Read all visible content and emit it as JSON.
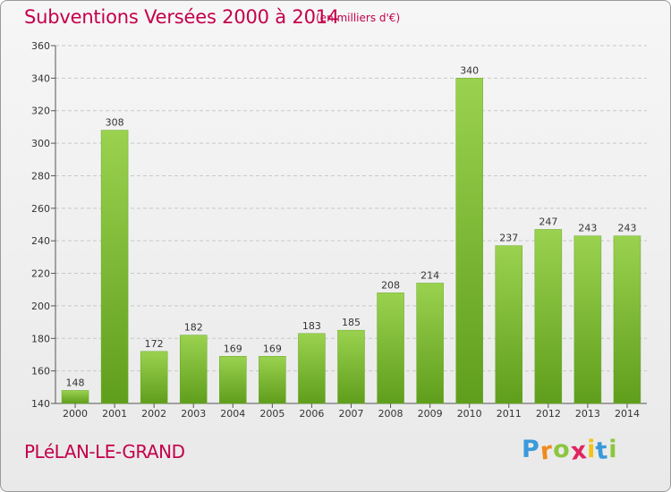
{
  "chart_data": {
    "type": "bar",
    "title": "Subventions Versées 2000 à 2014",
    "subtitle": "(en milliers d'€)",
    "categories": [
      "2000",
      "2001",
      "2002",
      "2003",
      "2004",
      "2005",
      "2006",
      "2007",
      "2008",
      "2009",
      "2010",
      "2011",
      "2012",
      "2013",
      "2014"
    ],
    "values": [
      148,
      308,
      172,
      182,
      169,
      169,
      183,
      185,
      208,
      214,
      340,
      237,
      247,
      243,
      243
    ],
    "ylim": [
      140,
      360
    ],
    "yticks": [
      140,
      160,
      180,
      200,
      220,
      240,
      260,
      280,
      300,
      320,
      340,
      360
    ],
    "xlabel": "",
    "ylabel": "",
    "grid": "horizontal dashed",
    "bar_color": "#7cc23a"
  },
  "place_name": "PLéLAN-LE-GRAND",
  "logo": {
    "letters": [
      "P",
      "r",
      "o",
      "x",
      "i",
      "t",
      "i"
    ],
    "colors": [
      "#3a9ad9",
      "#f08a1c",
      "#8cc63f",
      "#e0245e",
      "#f0c419",
      "#3a9ad9",
      "#8cc63f"
    ]
  }
}
